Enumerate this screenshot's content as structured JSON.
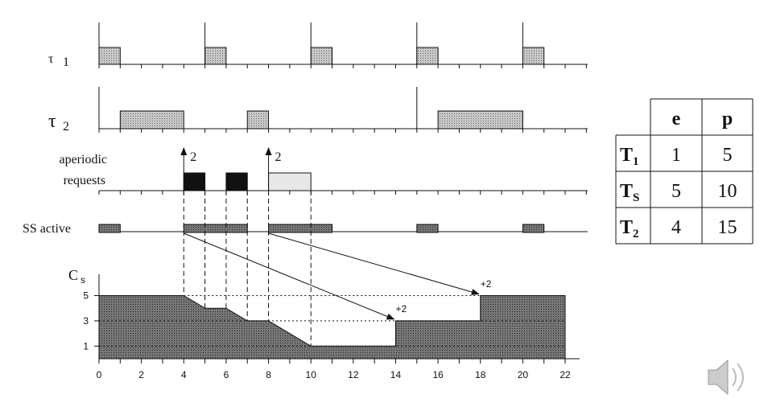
{
  "rows": {
    "tau1": "τ",
    "tau1_sub": "1",
    "tau2": "τ",
    "tau2_sub": "2",
    "aperiodic": [
      "aperiodic",
      "requests"
    ],
    "ss_active": "SS active",
    "cs": "C",
    "cs_sub": "s"
  },
  "request_amounts": [
    "2",
    "2"
  ],
  "replenishments": [
    "+2",
    "+2"
  ],
  "capacity_ticks": [
    "5",
    "3",
    "1"
  ],
  "time_ticks": [
    "0",
    "2",
    "4",
    "6",
    "8",
    "10",
    "12",
    "14",
    "16",
    "18",
    "20",
    "22"
  ],
  "table": {
    "header": [
      "e",
      "p"
    ],
    "rows": [
      {
        "task": "T",
        "sub": "1",
        "e": "1",
        "p": "5"
      },
      {
        "task": "T",
        "sub": "S",
        "e": "5",
        "p": "10"
      },
      {
        "task": "T",
        "sub": "2",
        "e": "4",
        "p": "15"
      }
    ]
  }
}
